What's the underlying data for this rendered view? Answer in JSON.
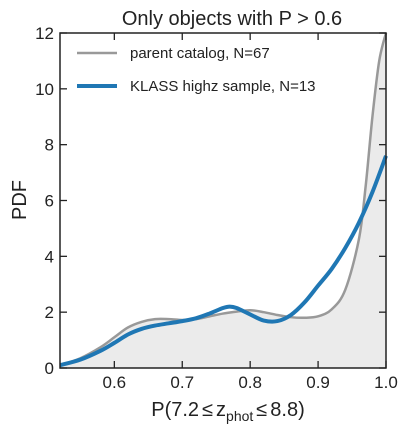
{
  "chart_data": {
    "type": "line",
    "title": "Only objects with P > 0.6",
    "xlabel": "P(7.2 ≤ z_phot ≤ 8.8)",
    "xlabel_parts": {
      "pre": "P(7.2",
      "le1": "≤",
      "z": "z",
      "sub": "phot",
      "le2": "≤",
      "post": "8.8)"
    },
    "ylabel": "PDF",
    "xlim": [
      0.52,
      1.0
    ],
    "ylim": [
      0,
      12
    ],
    "xticks": [
      0.6,
      0.7,
      0.8,
      0.9,
      1.0
    ],
    "xtick_labels": [
      "0.6",
      "0.7",
      "0.8",
      "0.9",
      "1.0"
    ],
    "yticks": [
      0,
      2,
      4,
      6,
      8,
      10,
      12
    ],
    "ytick_labels": [
      "0",
      "2",
      "4",
      "6",
      "8",
      "10",
      "12"
    ],
    "grid": false,
    "legend_position": "top-left",
    "series": [
      {
        "name": "parent catalog, N=67",
        "color": "#999999",
        "filled": true,
        "fill_color": "#ebebeb",
        "x": [
          0.52,
          0.55,
          0.58,
          0.6,
          0.62,
          0.64,
          0.66,
          0.68,
          0.7,
          0.72,
          0.74,
          0.76,
          0.78,
          0.8,
          0.82,
          0.84,
          0.86,
          0.88,
          0.9,
          0.92,
          0.94,
          0.96,
          0.97,
          0.98,
          0.99,
          1.0
        ],
        "y": [
          0.1,
          0.35,
          0.75,
          1.1,
          1.45,
          1.65,
          1.75,
          1.75,
          1.72,
          1.75,
          1.85,
          1.95,
          2.02,
          2.07,
          2.0,
          1.9,
          1.82,
          1.8,
          1.85,
          2.1,
          2.8,
          4.6,
          6.5,
          9.0,
          11.0,
          12.0
        ]
      },
      {
        "name": "KLASS highz sample, N=13",
        "color": "#1f77b4",
        "filled": false,
        "x": [
          0.52,
          0.55,
          0.58,
          0.6,
          0.62,
          0.64,
          0.66,
          0.68,
          0.7,
          0.72,
          0.74,
          0.76,
          0.77,
          0.78,
          0.8,
          0.82,
          0.84,
          0.86,
          0.88,
          0.9,
          0.92,
          0.94,
          0.96,
          0.98,
          1.0
        ],
        "y": [
          0.1,
          0.3,
          0.62,
          0.9,
          1.2,
          1.4,
          1.52,
          1.6,
          1.68,
          1.78,
          1.95,
          2.15,
          2.2,
          2.15,
          1.92,
          1.7,
          1.68,
          1.9,
          2.35,
          2.95,
          3.55,
          4.3,
          5.2,
          6.3,
          7.6
        ]
      }
    ]
  }
}
